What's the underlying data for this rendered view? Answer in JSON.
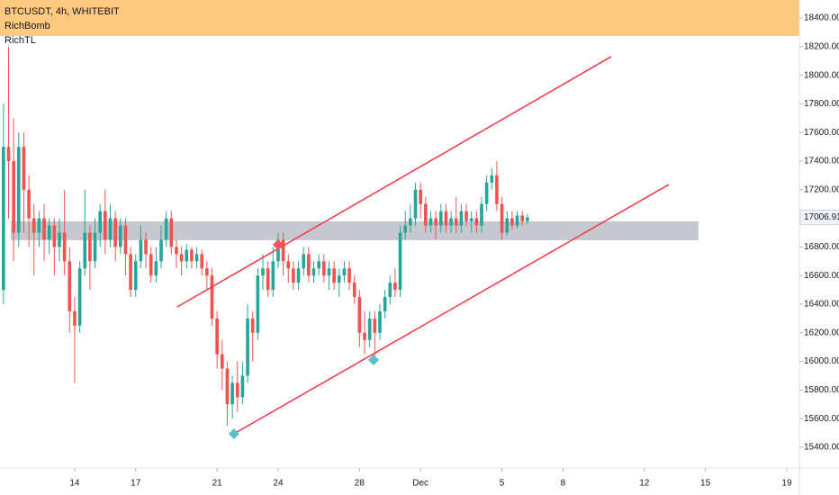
{
  "chart_data": {
    "type": "candlestick",
    "title": "BTCUSDT, 4h, WHITEBIT",
    "indicators": [
      "RichBomb",
      "RichTL"
    ],
    "up_color": "#26a69a",
    "down_color": "#ef5350",
    "xlim": [
      10.33,
      49.62
    ],
    "ylim": [
      15255,
      18526
    ],
    "xticks": [
      14,
      17,
      21,
      24,
      28,
      {
        "value": 31,
        "label": "Dec"
      },
      {
        "value": 35,
        "label": "5"
      },
      {
        "value": 38,
        "label": "8"
      },
      {
        "value": 42,
        "label": "12"
      },
      {
        "value": 45,
        "label": "15"
      },
      {
        "value": 49,
        "label": "19"
      }
    ],
    "yticks": [
      {
        "value": 15400,
        "label": "15400.00"
      },
      {
        "value": 15600,
        "label": "15600.00"
      },
      {
        "value": 15800,
        "label": "15800.00"
      },
      {
        "value": 16000,
        "label": "16000.00"
      },
      {
        "value": 16200,
        "label": "16200.00"
      },
      {
        "value": 16400,
        "label": "16400.00"
      },
      {
        "value": 16600,
        "label": "16600.00"
      },
      {
        "value": 16800,
        "label": "16800.00"
      },
      {
        "value": 17000,
        "label": "17000.00"
      },
      {
        "value": 17200,
        "label": "17200.00"
      },
      {
        "value": 17400,
        "label": "17400.00"
      },
      {
        "value": 17600,
        "label": "17600.00"
      },
      {
        "value": 17800,
        "label": "17800.00"
      },
      {
        "value": 18000,
        "label": "18000.00"
      },
      {
        "value": 18200,
        "label": "18200.00"
      },
      {
        "value": 18400,
        "label": "18400.00"
      }
    ],
    "zone": {
      "x": [
        10.86,
        44.66
      ],
      "y": [
        16847,
        16979
      ],
      "color": "#b2b5be"
    },
    "lines": [
      {
        "x": [
          19.04,
          40.37
        ],
        "y": [
          16381,
          18130
        ],
        "color": "#f23645"
      },
      {
        "x": [
          21.83,
          43.2
        ],
        "y": [
          15494,
          17236
        ],
        "color": "#f23645"
      }
    ],
    "markers": [
      {
        "x": 24.0,
        "y": 16815,
        "color": "#f7525f"
      },
      {
        "x": 21.83,
        "y": 15494,
        "color": "#5bc0c4"
      },
      {
        "x": 28.69,
        "y": 16010,
        "color": "#5bc0c4"
      }
    ],
    "candles": [
      {
        "x": 10.5,
        "o": 16500,
        "h": 17800,
        "l": 16400,
        "c": 17500
      },
      {
        "x": 10.75,
        "o": 17500,
        "h": 18200,
        "l": 17000,
        "c": 17400
      },
      {
        "x": 11,
        "o": 17400,
        "h": 17700,
        "l": 16700,
        "c": 16900
      },
      {
        "x": 11.25,
        "o": 16900,
        "h": 17600,
        "l": 16800,
        "c": 17500
      },
      {
        "x": 11.5,
        "o": 17500,
        "h": 17600,
        "l": 16900,
        "c": 17200
      },
      {
        "x": 11.75,
        "o": 17200,
        "h": 17300,
        "l": 16800,
        "c": 17000
      },
      {
        "x": 12,
        "o": 17000,
        "h": 17100,
        "l": 16600,
        "c": 16900
      },
      {
        "x": 12.25,
        "o": 16900,
        "h": 17050,
        "l": 16800,
        "c": 17000
      },
      {
        "x": 12.5,
        "o": 17000,
        "h": 17100,
        "l": 16700,
        "c": 16850
      },
      {
        "x": 12.75,
        "o": 16850,
        "h": 17000,
        "l": 16750,
        "c": 16950
      },
      {
        "x": 13,
        "o": 16950,
        "h": 17000,
        "l": 16600,
        "c": 16800
      },
      {
        "x": 13.25,
        "o": 16800,
        "h": 17000,
        "l": 16700,
        "c": 16900
      },
      {
        "x": 13.5,
        "o": 16900,
        "h": 17200,
        "l": 16600,
        "c": 16700
      },
      {
        "x": 13.75,
        "o": 16700,
        "h": 16800,
        "l": 16200,
        "c": 16350
      },
      {
        "x": 14,
        "o": 16350,
        "h": 16450,
        "l": 15850,
        "c": 16250
      },
      {
        "x": 14.25,
        "o": 16250,
        "h": 16700,
        "l": 16200,
        "c": 16650
      },
      {
        "x": 14.5,
        "o": 16650,
        "h": 17200,
        "l": 16600,
        "c": 16900
      },
      {
        "x": 14.75,
        "o": 16900,
        "h": 16950,
        "l": 16500,
        "c": 16700
      },
      {
        "x": 15,
        "o": 16700,
        "h": 17000,
        "l": 16650,
        "c": 16900
      },
      {
        "x": 15.25,
        "o": 16900,
        "h": 17100,
        "l": 16800,
        "c": 17050
      },
      {
        "x": 15.5,
        "o": 17050,
        "h": 17200,
        "l": 16750,
        "c": 16850
      },
      {
        "x": 15.75,
        "o": 16850,
        "h": 17100,
        "l": 16800,
        "c": 17000
      },
      {
        "x": 16,
        "o": 17000,
        "h": 17050,
        "l": 16700,
        "c": 16800
      },
      {
        "x": 16.25,
        "o": 16800,
        "h": 17000,
        "l": 16750,
        "c": 16950
      },
      {
        "x": 16.5,
        "o": 16950,
        "h": 17000,
        "l": 16600,
        "c": 16750
      },
      {
        "x": 16.75,
        "o": 16750,
        "h": 16800,
        "l": 16450,
        "c": 16500
      },
      {
        "x": 17,
        "o": 16500,
        "h": 16750,
        "l": 16450,
        "c": 16700
      },
      {
        "x": 17.25,
        "o": 16700,
        "h": 16950,
        "l": 16650,
        "c": 16850
      },
      {
        "x": 17.5,
        "o": 16850,
        "h": 16900,
        "l": 16650,
        "c": 16750
      },
      {
        "x": 17.75,
        "o": 16750,
        "h": 16800,
        "l": 16550,
        "c": 16600
      },
      {
        "x": 18,
        "o": 16600,
        "h": 16800,
        "l": 16550,
        "c": 16700
      },
      {
        "x": 18.25,
        "o": 16700,
        "h": 16950,
        "l": 16650,
        "c": 16850
      },
      {
        "x": 18.5,
        "o": 16850,
        "h": 17050,
        "l": 16800,
        "c": 17000
      },
      {
        "x": 18.75,
        "o": 17000,
        "h": 17050,
        "l": 16750,
        "c": 16800
      },
      {
        "x": 19,
        "o": 16800,
        "h": 16850,
        "l": 16650,
        "c": 16750
      },
      {
        "x": 19.25,
        "o": 16750,
        "h": 16800,
        "l": 16600,
        "c": 16700
      },
      {
        "x": 19.5,
        "o": 16700,
        "h": 16820,
        "l": 16650,
        "c": 16780
      },
      {
        "x": 19.75,
        "o": 16780,
        "h": 16800,
        "l": 16650,
        "c": 16700
      },
      {
        "x": 20,
        "o": 16700,
        "h": 16800,
        "l": 16650,
        "c": 16750
      },
      {
        "x": 20.25,
        "o": 16750,
        "h": 16780,
        "l": 16600,
        "c": 16650
      },
      {
        "x": 20.5,
        "o": 16650,
        "h": 16700,
        "l": 16500,
        "c": 16600
      },
      {
        "x": 20.75,
        "o": 16600,
        "h": 16650,
        "l": 16250,
        "c": 16300
      },
      {
        "x": 21,
        "o": 16300,
        "h": 16350,
        "l": 15950,
        "c": 16050
      },
      {
        "x": 21.25,
        "o": 16050,
        "h": 16150,
        "l": 15800,
        "c": 15950
      },
      {
        "x": 21.5,
        "o": 15950,
        "h": 16000,
        "l": 15550,
        "c": 15700
      },
      {
        "x": 21.75,
        "o": 15700,
        "h": 15900,
        "l": 15600,
        "c": 15850
      },
      {
        "x": 22,
        "o": 15850,
        "h": 16000,
        "l": 15650,
        "c": 15750
      },
      {
        "x": 22.25,
        "o": 15750,
        "h": 16000,
        "l": 15700,
        "c": 15900
      },
      {
        "x": 22.5,
        "o": 15900,
        "h": 16400,
        "l": 15850,
        "c": 16300
      },
      {
        "x": 22.75,
        "o": 16300,
        "h": 16350,
        "l": 16000,
        "c": 16200
      },
      {
        "x": 23,
        "o": 16200,
        "h": 16650,
        "l": 16150,
        "c": 16600
      },
      {
        "x": 23.25,
        "o": 16600,
        "h": 16750,
        "l": 16500,
        "c": 16650
      },
      {
        "x": 23.5,
        "o": 16650,
        "h": 16700,
        "l": 16450,
        "c": 16500
      },
      {
        "x": 23.75,
        "o": 16500,
        "h": 16800,
        "l": 16450,
        "c": 16700
      },
      {
        "x": 24,
        "o": 16700,
        "h": 16900,
        "l": 16650,
        "c": 16850
      },
      {
        "x": 24.25,
        "o": 16850,
        "h": 16900,
        "l": 16600,
        "c": 16700
      },
      {
        "x": 24.5,
        "o": 16700,
        "h": 16750,
        "l": 16550,
        "c": 16650
      },
      {
        "x": 24.75,
        "o": 16650,
        "h": 16700,
        "l": 16500,
        "c": 16550
      },
      {
        "x": 25,
        "o": 16550,
        "h": 16700,
        "l": 16500,
        "c": 16650
      },
      {
        "x": 25.25,
        "o": 16650,
        "h": 16800,
        "l": 16600,
        "c": 16750
      },
      {
        "x": 25.5,
        "o": 16750,
        "h": 16800,
        "l": 16550,
        "c": 16600
      },
      {
        "x": 25.75,
        "o": 16600,
        "h": 16700,
        "l": 16550,
        "c": 16650
      },
      {
        "x": 26,
        "o": 16650,
        "h": 16750,
        "l": 16600,
        "c": 16700
      },
      {
        "x": 26.25,
        "o": 16700,
        "h": 16750,
        "l": 16550,
        "c": 16600
      },
      {
        "x": 26.5,
        "o": 16600,
        "h": 16700,
        "l": 16500,
        "c": 16650
      },
      {
        "x": 26.75,
        "o": 16650,
        "h": 16700,
        "l": 16500,
        "c": 16550
      },
      {
        "x": 27,
        "o": 16550,
        "h": 16650,
        "l": 16450,
        "c": 16600
      },
      {
        "x": 27.25,
        "o": 16600,
        "h": 16700,
        "l": 16550,
        "c": 16650
      },
      {
        "x": 27.5,
        "o": 16650,
        "h": 16700,
        "l": 16500,
        "c": 16550
      },
      {
        "x": 27.75,
        "o": 16550,
        "h": 16600,
        "l": 16400,
        "c": 16450
      },
      {
        "x": 28,
        "o": 16450,
        "h": 16500,
        "l": 16100,
        "c": 16200
      },
      {
        "x": 28.25,
        "o": 16200,
        "h": 16350,
        "l": 16050,
        "c": 16150
      },
      {
        "x": 28.5,
        "o": 16150,
        "h": 16350,
        "l": 16100,
        "c": 16300
      },
      {
        "x": 28.75,
        "o": 16300,
        "h": 16350,
        "l": 16000,
        "c": 16200
      },
      {
        "x": 29,
        "o": 16200,
        "h": 16400,
        "l": 16150,
        "c": 16350
      },
      {
        "x": 29.25,
        "o": 16350,
        "h": 16500,
        "l": 16300,
        "c": 16450
      },
      {
        "x": 29.5,
        "o": 16450,
        "h": 16600,
        "l": 16400,
        "c": 16550
      },
      {
        "x": 29.75,
        "o": 16550,
        "h": 16650,
        "l": 16450,
        "c": 16500
      },
      {
        "x": 30,
        "o": 16500,
        "h": 16950,
        "l": 16450,
        "c": 16900
      },
      {
        "x": 30.25,
        "o": 16900,
        "h": 17050,
        "l": 16850,
        "c": 16950
      },
      {
        "x": 30.5,
        "o": 16950,
        "h": 17100,
        "l": 16900,
        "c": 17000
      },
      {
        "x": 30.75,
        "o": 17000,
        "h": 17250,
        "l": 16950,
        "c": 17200
      },
      {
        "x": 31,
        "o": 17200,
        "h": 17250,
        "l": 17000,
        "c": 17100
      },
      {
        "x": 31.25,
        "o": 17100,
        "h": 17150,
        "l": 16900,
        "c": 16950
      },
      {
        "x": 31.5,
        "o": 16950,
        "h": 17050,
        "l": 16900,
        "c": 17000
      },
      {
        "x": 31.75,
        "o": 17000,
        "h": 17050,
        "l": 16850,
        "c": 16950
      },
      {
        "x": 32,
        "o": 16950,
        "h": 17100,
        "l": 16900,
        "c": 17050
      },
      {
        "x": 32.25,
        "o": 17050,
        "h": 17100,
        "l": 16900,
        "c": 16950
      },
      {
        "x": 32.5,
        "o": 16950,
        "h": 17050,
        "l": 16900,
        "c": 17000
      },
      {
        "x": 32.75,
        "o": 17000,
        "h": 17150,
        "l": 16900,
        "c": 16950
      },
      {
        "x": 33,
        "o": 16950,
        "h": 17100,
        "l": 16900,
        "c": 17050
      },
      {
        "x": 33.25,
        "o": 17050,
        "h": 17100,
        "l": 16950,
        "c": 16980
      },
      {
        "x": 33.5,
        "o": 16980,
        "h": 17050,
        "l": 16900,
        "c": 17000
      },
      {
        "x": 33.75,
        "o": 17000,
        "h": 17050,
        "l": 16900,
        "c": 16950
      },
      {
        "x": 34,
        "o": 16950,
        "h": 17150,
        "l": 16900,
        "c": 17100
      },
      {
        "x": 34.25,
        "o": 17100,
        "h": 17300,
        "l": 17050,
        "c": 17250
      },
      {
        "x": 34.5,
        "o": 17250,
        "h": 17350,
        "l": 17200,
        "c": 17300
      },
      {
        "x": 34.75,
        "o": 17300,
        "h": 17400,
        "l": 17050,
        "c": 17100
      },
      {
        "x": 35,
        "o": 17100,
        "h": 17150,
        "l": 16850,
        "c": 16900
      },
      {
        "x": 35.25,
        "o": 16900,
        "h": 17050,
        "l": 16880,
        "c": 17000
      },
      {
        "x": 35.5,
        "o": 17000,
        "h": 17050,
        "l": 16920,
        "c": 16950
      },
      {
        "x": 35.75,
        "o": 16950,
        "h": 17050,
        "l": 16930,
        "c": 17020
      },
      {
        "x": 36,
        "o": 17020,
        "h": 17050,
        "l": 16950,
        "c": 16980
      },
      {
        "x": 36.25,
        "o": 16980,
        "h": 17030,
        "l": 16960,
        "c": 17006.91
      }
    ]
  }
}
